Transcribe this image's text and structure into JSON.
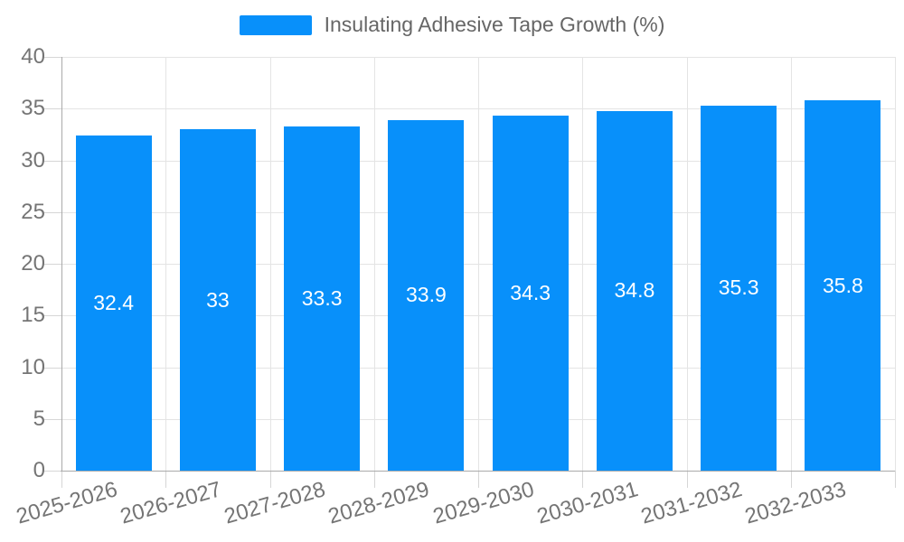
{
  "legend": {
    "label": "Insulating Adhesive Tape Growth (%)"
  },
  "colors": {
    "bar": "#0890fa",
    "grid": "#e4e4e4",
    "axis": "#aaaaaa",
    "tick": "#d6d6d6",
    "axis_text": "#757575",
    "legend_text": "#666666",
    "bar_label_text": "#ffffff",
    "background": "#ffffff"
  },
  "chart_data": {
    "type": "bar",
    "title": "Insulating Adhesive Tape Growth (%)",
    "categories": [
      "2025-2026",
      "2026-2027",
      "2027-2028",
      "2028-2029",
      "2029-2030",
      "2030-2031",
      "2031-2032",
      "2032-2033"
    ],
    "values": [
      32.4,
      33,
      33.3,
      33.9,
      34.3,
      34.8,
      35.3,
      35.8
    ],
    "value_labels": [
      "32.4",
      "33",
      "33.3",
      "33.9",
      "34.3",
      "34.8",
      "35.3",
      "35.8"
    ],
    "xlabel": "",
    "ylabel": "",
    "ylim": [
      0,
      40
    ],
    "yticks": [
      0,
      5,
      10,
      15,
      20,
      25,
      30,
      35,
      40
    ],
    "grid": true,
    "legend_position": "top",
    "x_label_rotation_deg": -16,
    "bar_label_position": "center"
  }
}
